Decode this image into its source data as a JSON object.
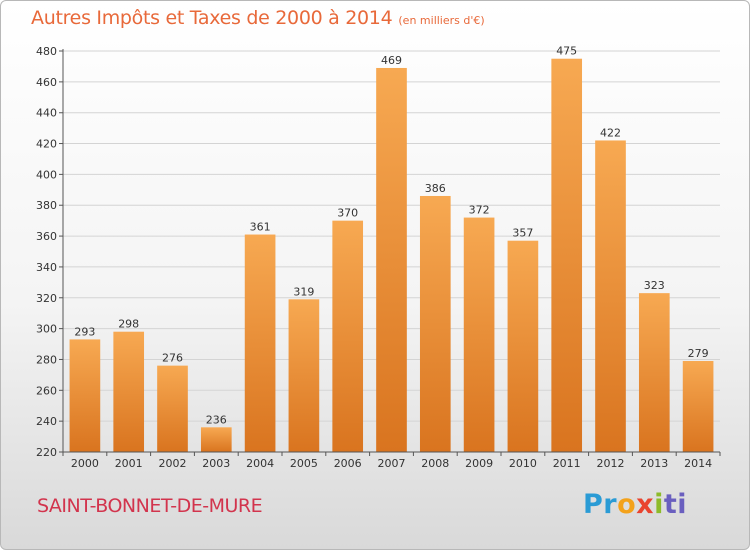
{
  "header": {
    "title": "Autres Impôts et Taxes de 2000 à 2014",
    "subtitle": "(en milliers d'€)"
  },
  "footer": {
    "place": "SAINT-BONNET-DE-MURE",
    "logo_parts": [
      "Pr",
      "o",
      "x",
      "i",
      "ti"
    ]
  },
  "colors": {
    "title": "#e8693a",
    "place": "#d2344d",
    "bar_light": "#f7a952",
    "bar_dark": "#d9741f"
  },
  "chart_data": {
    "type": "bar",
    "title": "Autres Impôts et Taxes de 2000 à 2014",
    "subtitle": "(en milliers d'€)",
    "xlabel": "",
    "ylabel": "",
    "categories": [
      "2000",
      "2001",
      "2002",
      "2003",
      "2004",
      "2005",
      "2006",
      "2007",
      "2008",
      "2009",
      "2010",
      "2011",
      "2012",
      "2013",
      "2014"
    ],
    "values": [
      293,
      298,
      276,
      236,
      361,
      319,
      370,
      469,
      386,
      372,
      357,
      475,
      422,
      323,
      279
    ],
    "ylim": [
      220,
      480
    ],
    "yticks": [
      220,
      240,
      260,
      280,
      300,
      320,
      340,
      360,
      380,
      400,
      420,
      440,
      460,
      480
    ],
    "grid": true,
    "legend": "none"
  }
}
